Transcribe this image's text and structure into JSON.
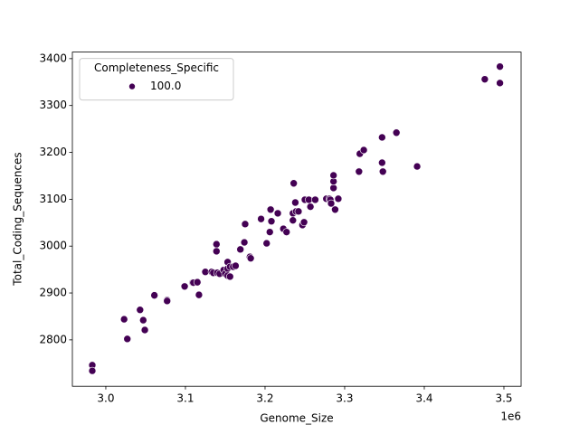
{
  "chart_data": {
    "type": "scatter",
    "xlabel": "Genome_Size",
    "ylabel": "Total_Coding_Sequences",
    "x_offset_label": "1e6",
    "legend_title": "Completeness_Specific",
    "legend_loc": "upper left",
    "xlim": [
      2958000,
      3521600
    ],
    "ylim": [
      2701,
      3414
    ],
    "xticks": [
      {
        "value": 3000000,
        "label": "3.0"
      },
      {
        "value": 3100000,
        "label": "3.1"
      },
      {
        "value": 3200000,
        "label": "3.2"
      },
      {
        "value": 3300000,
        "label": "3.3"
      },
      {
        "value": 3400000,
        "label": "3.4"
      },
      {
        "value": 3500000,
        "label": "3.5"
      }
    ],
    "yticks": [
      2800,
      2900,
      3000,
      3100,
      3200,
      3300,
      3400
    ],
    "series": [
      {
        "name": "100.0",
        "color": "#440154",
        "x": [
          2983000,
          2983000,
          3023000,
          3027000,
          3043000,
          3047000,
          3049000,
          3061000,
          3077000,
          3077000,
          3099000,
          3109000,
          3110000,
          3117000,
          3115000,
          3125000,
          3133000,
          3135000,
          3139000,
          3139000,
          3140000,
          3143000,
          3148000,
          3150000,
          3153000,
          3153000,
          3153000,
          3156000,
          3156000,
          3160000,
          3163000,
          3169000,
          3174000,
          3175000,
          3181000,
          3182000,
          3195000,
          3202000,
          3206000,
          3207000,
          3208000,
          3216000,
          3223000,
          3227000,
          3235000,
          3235000,
          3236000,
          3238000,
          3239000,
          3242000,
          3247000,
          3249000,
          3250000,
          3255000,
          3257000,
          3263000,
          3277000,
          3281000,
          3282000,
          3283000,
          3286000,
          3286000,
          3286000,
          3288000,
          3292000,
          3318000,
          3319000,
          3324000,
          3347000,
          3347000,
          3348000,
          3365000,
          3391000,
          3476000,
          3495000,
          3495000
        ],
        "values": [
          2746,
          2734,
          2844,
          2802,
          2864,
          2842,
          2821,
          2895,
          2885,
          2883,
          2914,
          2922,
          2922,
          2896,
          2923,
          2945,
          2945,
          2943,
          3004,
          2989,
          2943,
          2941,
          2949,
          2941,
          2966,
          2952,
          2937,
          2935,
          2956,
          2956,
          2958,
          2993,
          3008,
          3047,
          2977,
          2974,
          3058,
          3006,
          3030,
          3078,
          3053,
          3070,
          3037,
          3030,
          3070,
          3055,
          3134,
          3093,
          3074,
          3074,
          3045,
          3051,
          3099,
          3099,
          3084,
          3099,
          3101,
          3101,
          3099,
          3091,
          3124,
          3138,
          3151,
          3078,
          3101,
          3159,
          3197,
          3205,
          3178,
          3232,
          3159,
          3242,
          3170,
          3356,
          3383,
          3348
        ]
      }
    ]
  }
}
